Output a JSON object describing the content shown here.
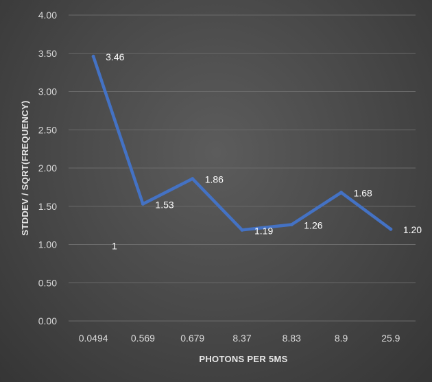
{
  "chart_data": {
    "type": "line",
    "title": "",
    "xlabel": "PHOTONS PER 5MS",
    "ylabel": "STDDEV / SQRT(FREQUENCY)",
    "categories": [
      "0.0494",
      "0.569",
      "0.679",
      "8.37",
      "8.83",
      "8.9",
      "25.9"
    ],
    "series": [
      {
        "values": [
          3.46,
          1.53,
          1.86,
          1.19,
          1.26,
          1.68,
          1.2
        ],
        "labels": [
          "3.46",
          "1.53",
          "1.86",
          "1.19",
          "1.26",
          "1.68",
          "1.20"
        ],
        "color": "#4472c4"
      }
    ],
    "yticks": [
      "0.00",
      "0.50",
      "1.00",
      "1.50",
      "2.00",
      "2.50",
      "3.00",
      "3.50",
      "4.00"
    ],
    "ylim": [
      0,
      4
    ],
    "annotations": [
      {
        "text": "1",
        "category": "0.0494",
        "y": 1.0
      }
    ],
    "grid": true,
    "legend": "none"
  }
}
